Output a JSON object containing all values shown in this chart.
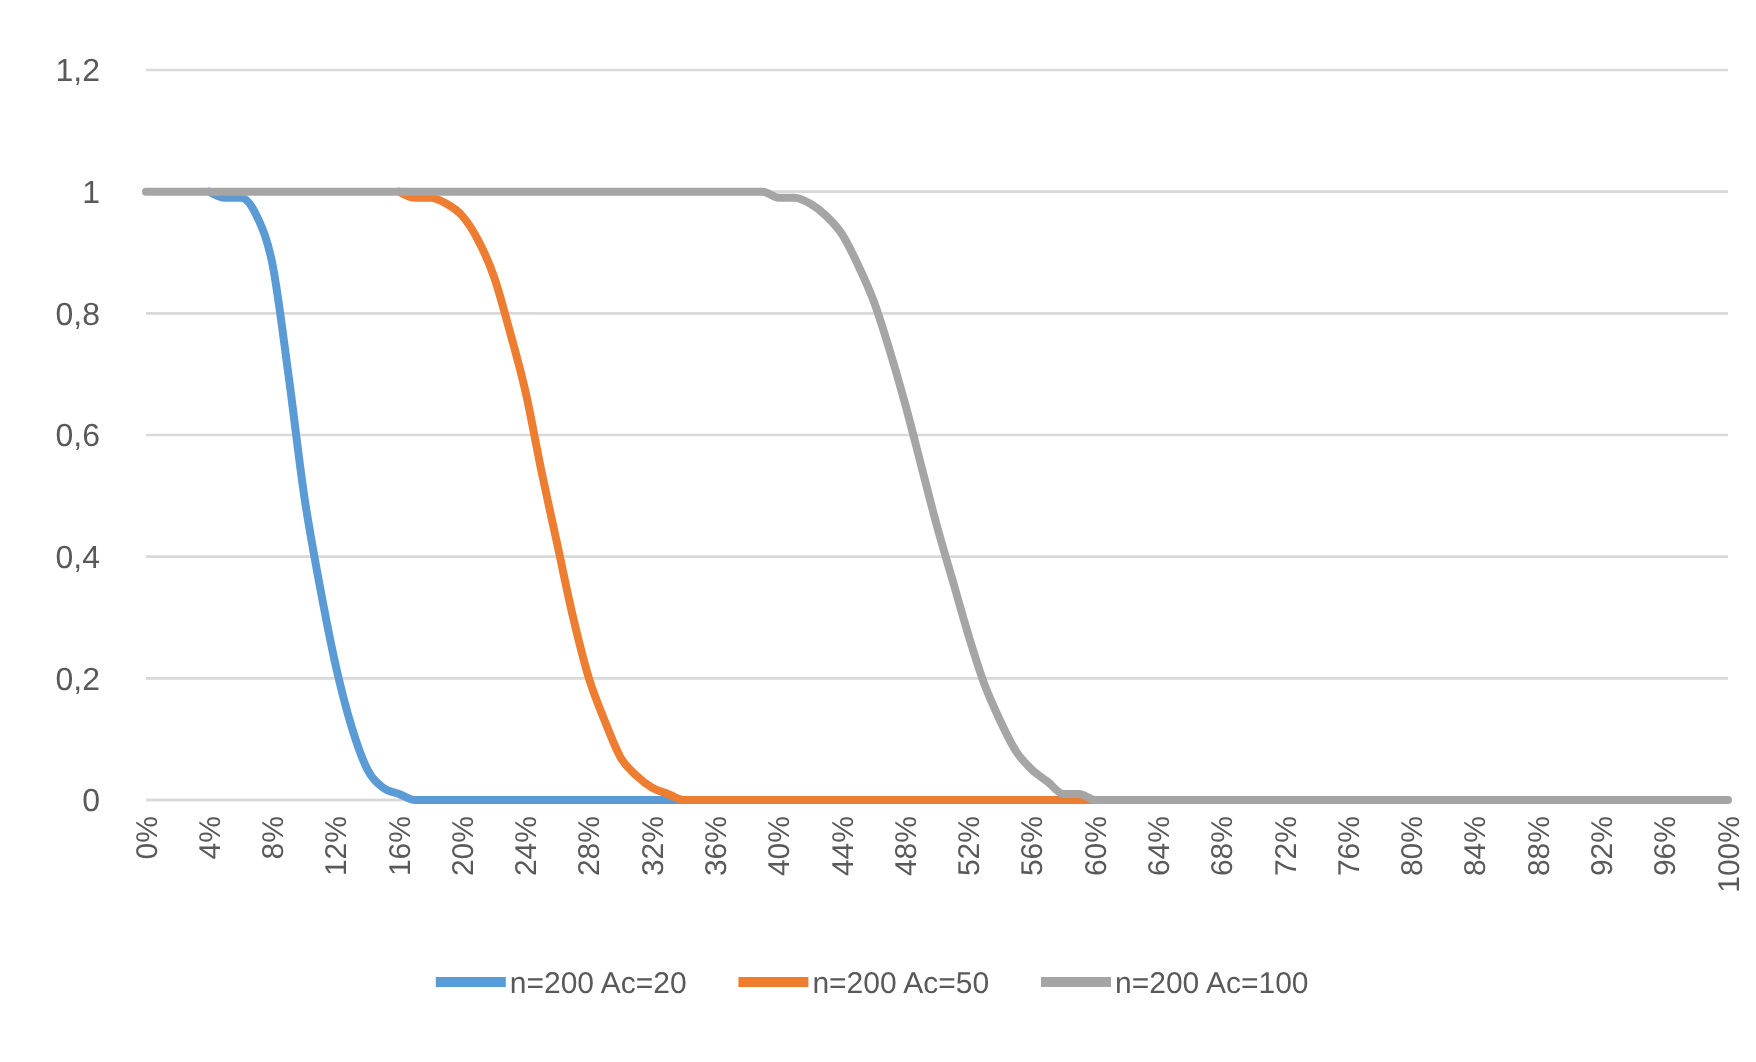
{
  "chart_data": {
    "type": "line",
    "categories": [
      "0%",
      null,
      null,
      null,
      "4%",
      null,
      null,
      null,
      "8%",
      null,
      null,
      null,
      "12%",
      null,
      null,
      null,
      "16%",
      null,
      null,
      null,
      "20%",
      null,
      null,
      null,
      "24%",
      null,
      null,
      null,
      "28%",
      null,
      null,
      null,
      "32%",
      null,
      null,
      null,
      "36%",
      null,
      null,
      null,
      "40%",
      null,
      null,
      null,
      "44%",
      null,
      null,
      null,
      "48%",
      null,
      null,
      null,
      "52%",
      null,
      null,
      null,
      "56%",
      null,
      null,
      null,
      "60%",
      null,
      null,
      null,
      "64%",
      null,
      null,
      null,
      "68%",
      null,
      null,
      null,
      "72%",
      null,
      null,
      null,
      "76%",
      null,
      null,
      null,
      "80%",
      null,
      null,
      null,
      "84%",
      null,
      null,
      null,
      "88%",
      null,
      null,
      null,
      "92%",
      null,
      null,
      null,
      "96%",
      null,
      null,
      null,
      "100%"
    ],
    "ylim": [
      0,
      1.2
    ],
    "yticks": [
      0,
      {
        "value": 0.2,
        "label": "0,2"
      },
      {
        "value": 0.4,
        "label": "0,4"
      },
      {
        "value": 0.6,
        "label": "0,6"
      },
      {
        "value": 0.8,
        "label": "0,8"
      },
      1,
      {
        "value": 1.2,
        "label": "1,2"
      }
    ],
    "grid": "y",
    "legend": "bottom",
    "marker": "none",
    "line_style": "solid",
    "series": [
      {
        "name": "n=200 Ac=20",
        "color": "#5b9bd5",
        "values": [
          null,
          null,
          null,
          null,
          1,
          0.99,
          0.99,
          0.96,
          0.88,
          0.7,
          0.5,
          0.35,
          0.22,
          0.12,
          0.05,
          0.02,
          0.01,
          0,
          0,
          0,
          0,
          0,
          0,
          0,
          0,
          0,
          0,
          0,
          0,
          0,
          0,
          0,
          0,
          0,
          0,
          null,
          null,
          null,
          null,
          null,
          null,
          null,
          null,
          null,
          null,
          null,
          null,
          null,
          null,
          null,
          null,
          null,
          null,
          null,
          null,
          null,
          null,
          null,
          null,
          null,
          null,
          null,
          null,
          null,
          null,
          null,
          null,
          null,
          null,
          null,
          null,
          null,
          null,
          null,
          null,
          null,
          null,
          null,
          null,
          null,
          null,
          null,
          null,
          null,
          null,
          null,
          null,
          null,
          null,
          null,
          null,
          null,
          null,
          null,
          null,
          null,
          null,
          null,
          null,
          null,
          null
        ]
      },
      {
        "name": "n=200 Ac=50",
        "color": "#ed7d31",
        "values": [
          null,
          null,
          null,
          null,
          null,
          null,
          null,
          null,
          null,
          null,
          null,
          null,
          null,
          null,
          null,
          null,
          1,
          0.99,
          0.99,
          0.98,
          0.96,
          0.92,
          0.86,
          0.77,
          0.67,
          0.54,
          0.42,
          0.3,
          0.2,
          0.13,
          0.07,
          0.04,
          0.02,
          0.01,
          0,
          0,
          0,
          0,
          0,
          0,
          0,
          0,
          0,
          0,
          0,
          0,
          0,
          0,
          0,
          0,
          0,
          0,
          0,
          0,
          0,
          0,
          0,
          0,
          0,
          0,
          0,
          null,
          null,
          null,
          null,
          null,
          null,
          null,
          null,
          null,
          null,
          null,
          null,
          null,
          null,
          null,
          null,
          null,
          null,
          null,
          null,
          null,
          null,
          null,
          null,
          null,
          null,
          null,
          null,
          null,
          null,
          null,
          null,
          null,
          null,
          null,
          null,
          null,
          null,
          null,
          null
        ]
      },
      {
        "name": "n=200 Ac=100",
        "color": "#a5a5a5",
        "values": [
          1,
          1,
          1,
          1,
          1,
          1,
          1,
          1,
          1,
          1,
          1,
          1,
          1,
          1,
          1,
          1,
          1,
          1,
          1,
          1,
          1,
          1,
          1,
          1,
          1,
          1,
          1,
          1,
          1,
          1,
          1,
          1,
          1,
          1,
          1,
          1,
          1,
          1,
          1,
          1,
          0.99,
          0.99,
          0.98,
          0.96,
          0.93,
          0.88,
          0.82,
          0.74,
          0.65,
          0.55,
          0.45,
          0.36,
          0.27,
          0.19,
          0.13,
          0.08,
          0.05,
          0.03,
          0.01,
          0.01,
          0,
          0,
          0,
          0,
          0,
          0,
          0,
          0,
          0,
          0,
          0,
          0,
          0,
          0,
          0,
          0,
          0,
          0,
          0,
          0,
          0,
          0,
          0,
          0,
          0,
          0,
          0,
          0,
          0,
          0,
          0,
          0,
          0,
          0,
          0,
          0,
          0,
          0,
          0,
          0,
          0
        ]
      }
    ]
  }
}
